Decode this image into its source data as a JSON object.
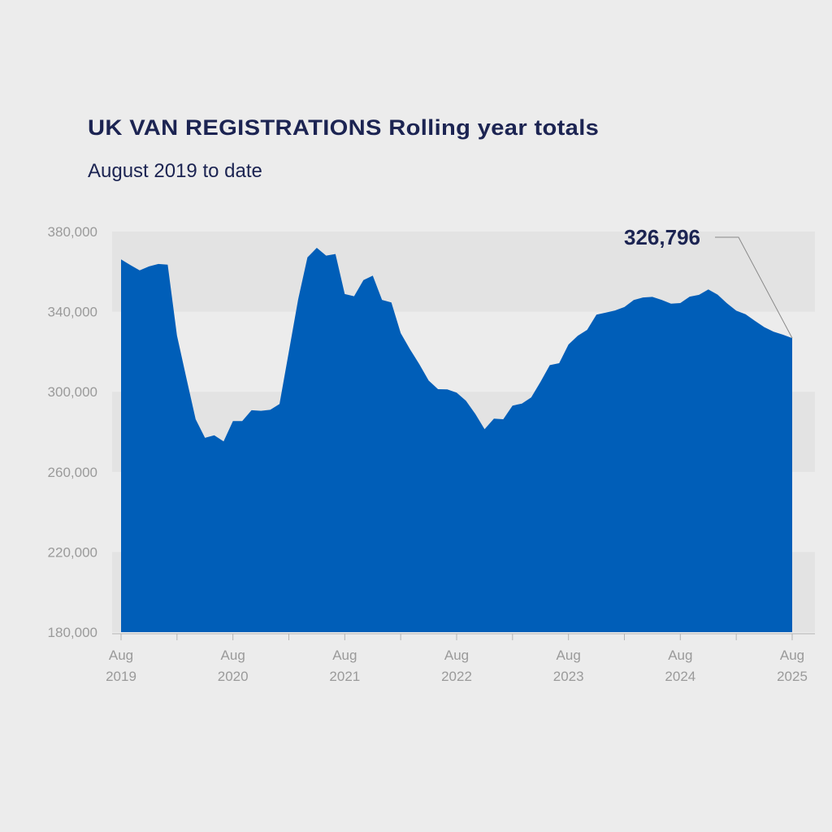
{
  "chart_data": {
    "type": "area",
    "title": "UK VAN REGISTRATIONS Rolling year totals",
    "subtitle": "August 2019 to date",
    "xlabel": "",
    "ylabel": "",
    "ylim": [
      180000,
      380000
    ],
    "yticks": [
      380000,
      340000,
      300000,
      260000,
      220000,
      180000
    ],
    "ytick_labels": [
      "380,000",
      "340,000",
      "300,000",
      "260,000",
      "220,000",
      "180,000"
    ],
    "x_start": "Aug 2019",
    "x_unit": "month",
    "xtick_labels": [
      {
        "month": "Aug",
        "year": "2019",
        "index": 0
      },
      {
        "month": "Aug",
        "year": "2020",
        "index": 12
      },
      {
        "month": "Aug",
        "year": "2021",
        "index": 24
      },
      {
        "month": "Aug",
        "year": "2022",
        "index": 36
      },
      {
        "month": "Aug",
        "year": "2023",
        "index": 48
      },
      {
        "month": "Aug",
        "year": "2024",
        "index": 60
      },
      {
        "month": "Aug",
        "year": "2025",
        "index": 72
      }
    ],
    "values": [
      366100,
      363300,
      360600,
      362600,
      363800,
      363500,
      328100,
      307000,
      286300,
      277000,
      278300,
      275200,
      285400,
      285400,
      290800,
      290500,
      291000,
      293900,
      320000,
      346200,
      367100,
      371900,
      368000,
      368800,
      348800,
      347700,
      355800,
      358000,
      345900,
      344600,
      329300,
      321200,
      313800,
      305600,
      301300,
      301200,
      299600,
      295500,
      289000,
      281300,
      286600,
      286300,
      293100,
      294100,
      297200,
      305000,
      313300,
      314300,
      323600,
      328000,
      330900,
      338500,
      339500,
      340600,
      342300,
      345800,
      347100,
      347400,
      345900,
      344000,
      344300,
      347500,
      348400,
      351100,
      348500,
      344200,
      340500,
      338700,
      335400,
      332300,
      330000,
      328500,
      326796
    ],
    "annotation": {
      "label": "326,796",
      "index": 72
    },
    "colors": {
      "fill": "#005eb8",
      "text": "#1c2452",
      "band": "#e3e3e3",
      "axis": "#9a9a9a"
    },
    "grid": "alternating-bands",
    "legend": "none"
  }
}
